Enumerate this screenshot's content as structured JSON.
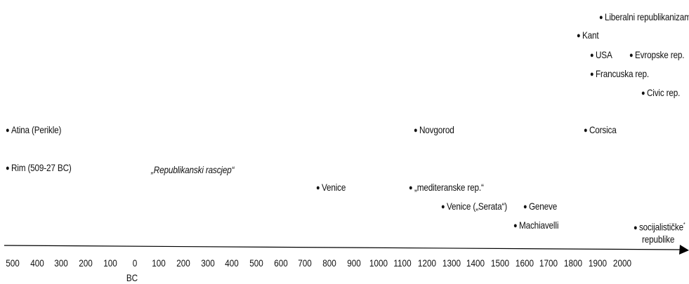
{
  "events": {
    "liberalni": "Liberalni republikanizam",
    "kant": "Kant",
    "usa": "USA",
    "evropske": "Evropske rep.",
    "francuska": "Francuska rep.",
    "civic": "Civic rep.",
    "atina": "Atina (Perikle)",
    "novgorod": "Novgorod",
    "corsica": "Corsica",
    "rim": "Rim (509-27 BC)",
    "rascjep": "„Republikanski rascjep“",
    "venice1": "Venice",
    "mediteranske": "„mediteranske rep.“",
    "venice2": "Venice („Serata“)",
    "geneve": "Geneve",
    "machiavelli": "Machiavelli",
    "socijalisticke": "socijalističke",
    "socijalisticke_line2": "republike",
    "asterisk": "*"
  },
  "axis": {
    "ticks": [
      "500",
      "400",
      "300",
      "200",
      "100",
      "0",
      "100",
      "200",
      "300",
      "400",
      "500",
      "600",
      "700",
      "800",
      "900",
      "1000",
      "1100",
      "1200",
      "1300",
      "1400",
      "1500",
      "1600",
      "1700",
      "1800",
      "1900",
      "2000"
    ],
    "bc_label": "BC",
    "color": "#000000"
  },
  "bullet_glyph": "●"
}
